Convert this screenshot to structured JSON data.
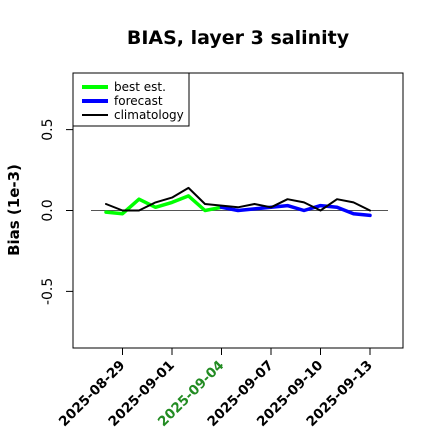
{
  "chart_data": {
    "type": "line",
    "title": "BIAS, layer 3 salinity",
    "xlabel": "",
    "ylabel": "Bias (1e-3)",
    "ylim": [
      -0.85,
      0.85
    ],
    "yticks": [
      -0.5,
      0.0,
      0.5
    ],
    "ytick_labels": [
      "-0.5",
      "0.0",
      "0.5"
    ],
    "xlim": [
      "2025-08-26",
      "2025-09-15"
    ],
    "xticks": [
      "2025-08-29",
      "2025-09-01",
      "2025-09-04",
      "2025-09-07",
      "2025-09-10",
      "2025-09-13"
    ],
    "highlight_tick": "2025-09-04",
    "highlight_color": "#228B22",
    "zero_line": true,
    "legend": {
      "position": "top-left",
      "entries": [
        "best est.",
        "forecast",
        "climatology"
      ]
    },
    "series": [
      {
        "name": "best est.",
        "color": "#00ff00",
        "x": [
          "2025-08-28",
          "2025-08-29",
          "2025-08-30",
          "2025-08-31",
          "2025-09-01",
          "2025-09-02",
          "2025-09-03",
          "2025-09-04"
        ],
        "values": [
          -0.01,
          -0.02,
          0.07,
          0.02,
          0.05,
          0.09,
          0.0,
          0.02
        ]
      },
      {
        "name": "forecast",
        "color": "#0000ff",
        "x": [
          "2025-09-04",
          "2025-09-05",
          "2025-09-06",
          "2025-09-07",
          "2025-09-08",
          "2025-09-09",
          "2025-09-10",
          "2025-09-11",
          "2025-09-12",
          "2025-09-13"
        ],
        "values": [
          0.02,
          0.0,
          0.01,
          0.02,
          0.03,
          0.0,
          0.03,
          0.02,
          -0.02,
          -0.03
        ]
      },
      {
        "name": "climatology",
        "color": "#000000",
        "x": [
          "2025-08-28",
          "2025-08-29",
          "2025-08-30",
          "2025-08-31",
          "2025-09-01",
          "2025-09-02",
          "2025-09-03",
          "2025-09-04",
          "2025-09-05",
          "2025-09-06",
          "2025-09-07",
          "2025-09-08",
          "2025-09-09",
          "2025-09-10",
          "2025-09-11",
          "2025-09-12",
          "2025-09-13"
        ],
        "values": [
          0.04,
          0.0,
          0.0,
          0.05,
          0.08,
          0.14,
          0.04,
          0.03,
          0.02,
          0.04,
          0.02,
          0.07,
          0.05,
          0.0,
          0.07,
          0.05,
          0.0
        ]
      }
    ]
  }
}
